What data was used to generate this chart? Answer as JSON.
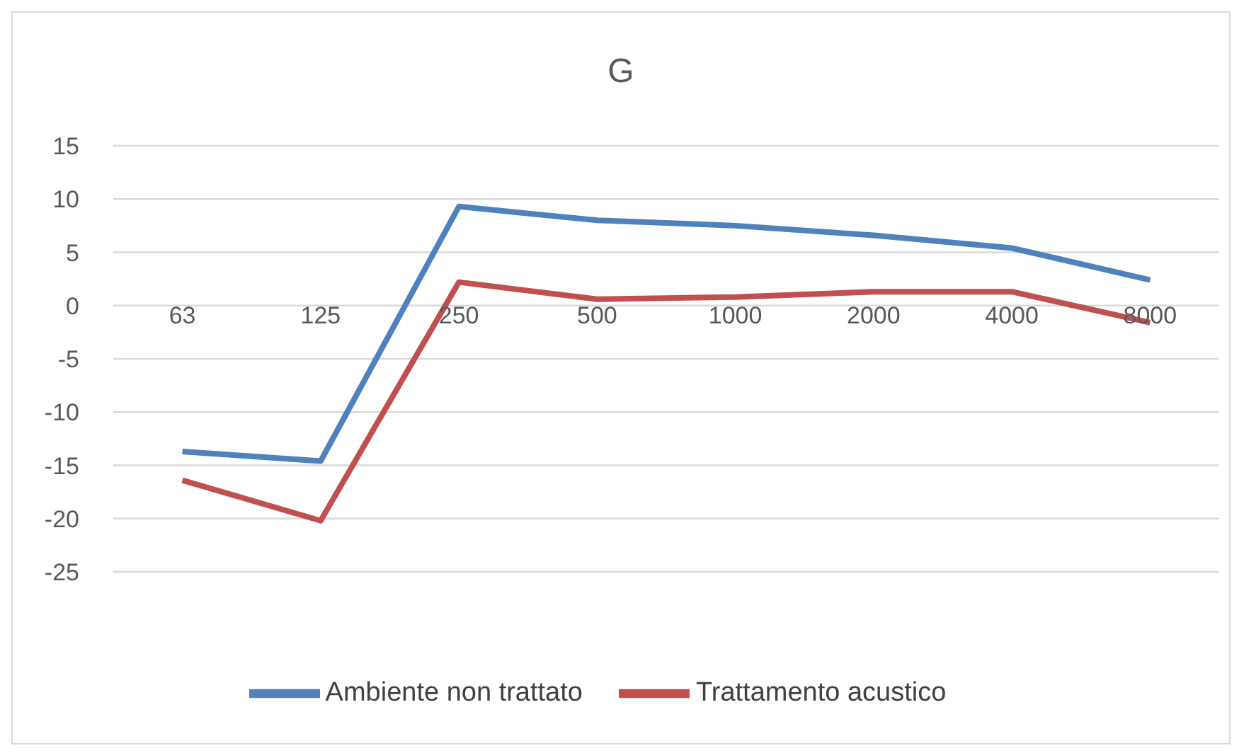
{
  "chart_data": {
    "type": "line",
    "title": "G",
    "categories": [
      "63",
      "125",
      "250",
      "500",
      "1000",
      "2000",
      "4000",
      "8000"
    ],
    "series": [
      {
        "name": "Trattamento acustico",
        "color": "#c0504d",
        "values": [
          -16.4,
          -20.2,
          2.2,
          0.6,
          0.8,
          1.3,
          1.3,
          -1.6
        ]
      },
      {
        "name": "Ambiente non trattato",
        "color": "#4f81bd",
        "values": [
          -13.7,
          -14.6,
          9.3,
          8.0,
          7.5,
          6.6,
          5.4,
          2.4
        ]
      }
    ],
    "ylim": [
      -25,
      15
    ],
    "yticks": [
      -25,
      -20,
      -15,
      -10,
      -5,
      0,
      5,
      10,
      15
    ],
    "grid": "y",
    "legend": "bottom",
    "marker": "none",
    "line_style": "solid"
  }
}
